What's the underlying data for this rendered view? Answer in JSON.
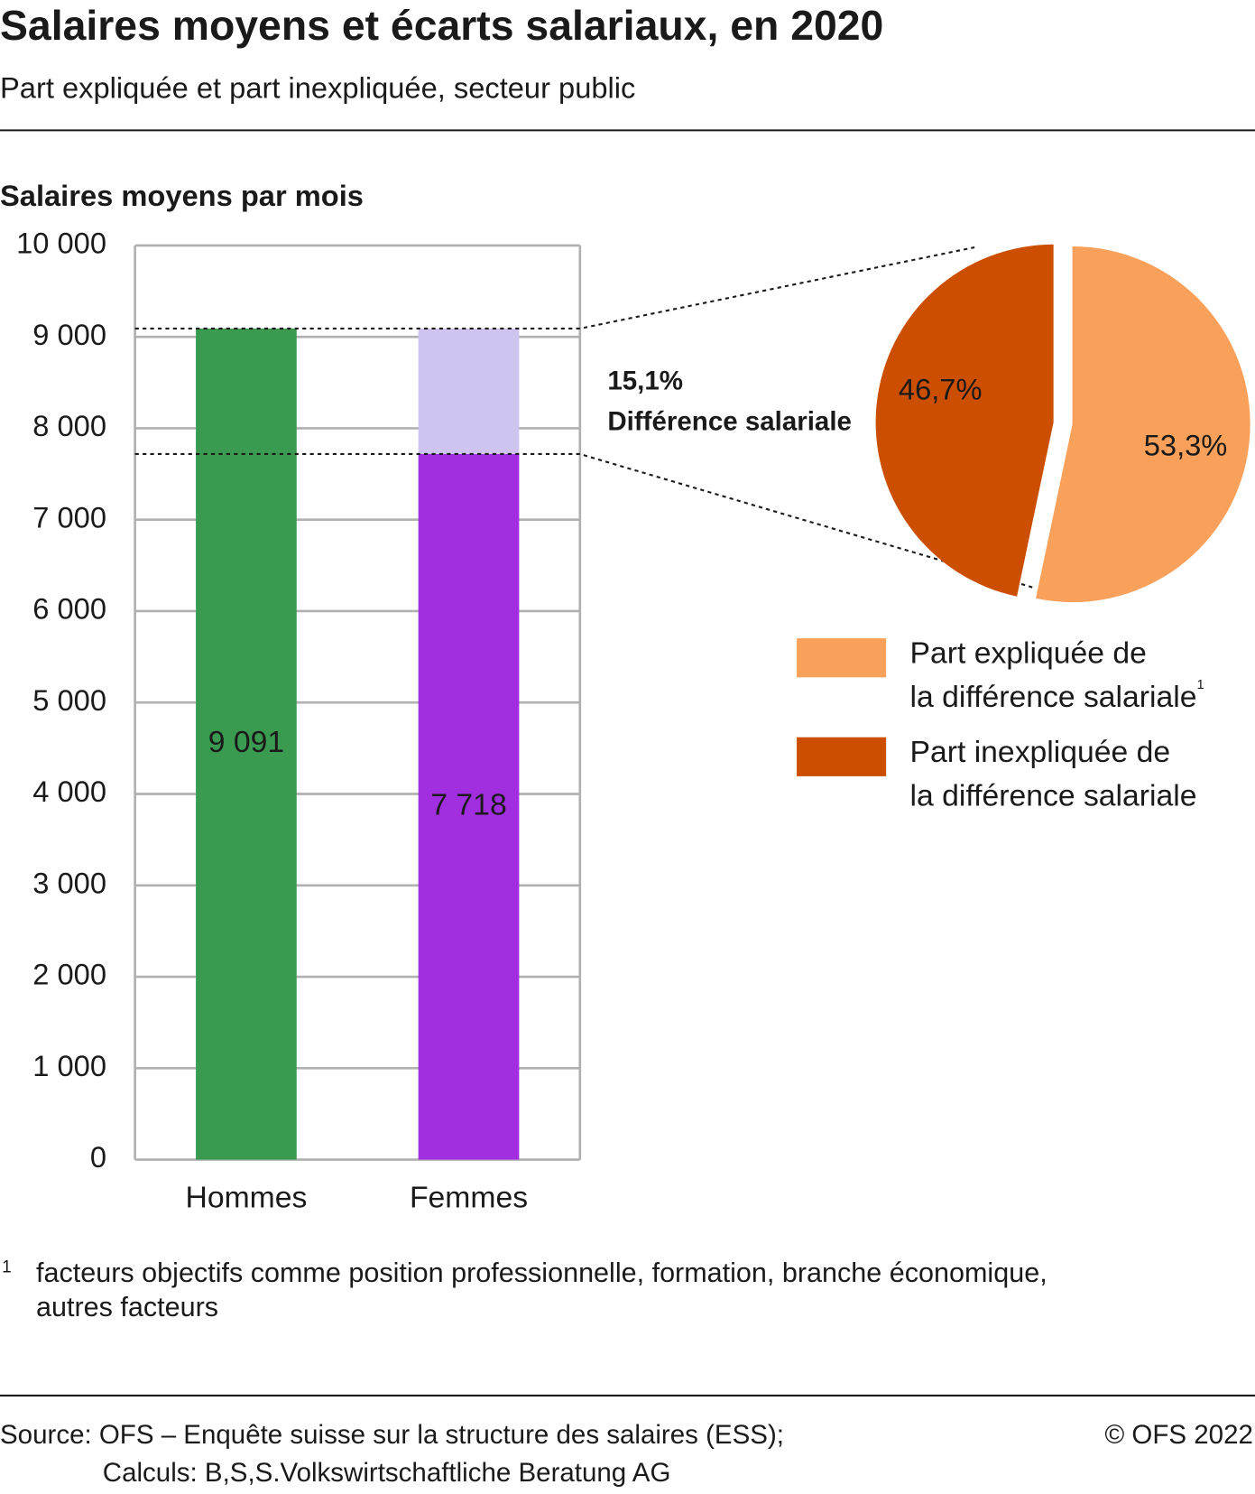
{
  "header": {
    "title": "Salaires moyens et écarts salariaux, en 2020",
    "subtitle": "Part expliquée et part inexpliquée, secteur public"
  },
  "chart_data": [
    {
      "type": "bar",
      "y_label": "Salaires moyens par mois",
      "categories": [
        "Hommes",
        "Femmes"
      ],
      "values": [
        9091,
        7718
      ],
      "value_labels": [
        "9 091",
        "7 718"
      ],
      "colors": [
        "#3a9b50",
        "#a22fdf"
      ],
      "value_label_colors": [
        "#1a1a1a",
        "#ffffff"
      ],
      "gap_color": "#cfc3f0",
      "ylim": [
        0,
        10000
      ],
      "yticks": [
        0,
        {
          "value": 1000,
          "label": "1 000"
        },
        {
          "value": 2000,
          "label": "2 000"
        },
        {
          "value": 3000,
          "label": "3 000"
        },
        {
          "value": 4000,
          "label": "4 000"
        },
        {
          "value": 5000,
          "label": "5 000"
        },
        {
          "value": 6000,
          "label": "6 000"
        },
        {
          "value": 7000,
          "label": "7 000"
        },
        {
          "value": 8000,
          "label": "8 000"
        },
        {
          "value": 9000,
          "label": "9 000"
        },
        {
          "value": 10000,
          "label": "10 000"
        }
      ],
      "grid": true
    },
    {
      "type": "pie",
      "annotation": {
        "value": 15.1,
        "label": "15,1%",
        "text": "Différence salariale"
      },
      "categories": [
        "Part expliquée de\nla différence salariale",
        "Part inexpliquée de\nla différence salariale"
      ],
      "category_notes": [
        "1",
        null
      ],
      "values": [
        53.3,
        46.7
      ],
      "value_labels": [
        "53,3%",
        "46,7%"
      ],
      "colors": [
        "#f9a15a",
        "#cc4e00"
      ],
      "value_label_colors": [
        "#1a1a1a",
        "#ffffff"
      ]
    }
  ],
  "footnote": {
    "marker": "1",
    "lines": [
      "facteurs objectifs comme position professionnelle, formation, branche économique,",
      "autres facteurs"
    ]
  },
  "footer": {
    "source": [
      "Source: OFS – Enquête suisse sur la structure des salaires (ESS);",
      "Calculs: B,S,S.Volkswirtschaftliche Beratung AG"
    ],
    "copyright": "© OFS 2022"
  }
}
